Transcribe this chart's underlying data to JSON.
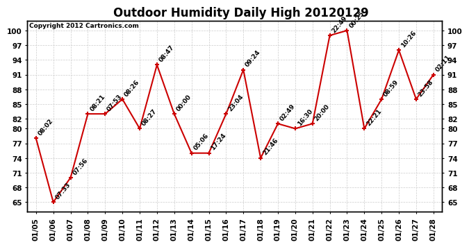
{
  "title": "Outdoor Humidity Daily High 20120129",
  "copyright": "Copyright 2012 Cartronics.com",
  "x_labels": [
    "01/05",
    "01/06",
    "01/07",
    "01/08",
    "01/09",
    "01/10",
    "01/11",
    "01/12",
    "01/13",
    "01/14",
    "01/15",
    "01/16",
    "01/17",
    "01/18",
    "01/19",
    "01/20",
    "01/21",
    "01/22",
    "01/23",
    "01/24",
    "01/25",
    "01/26",
    "01/27",
    "01/28"
  ],
  "y_values": [
    78,
    65,
    70,
    83,
    83,
    86,
    80,
    93,
    83,
    75,
    75,
    83,
    92,
    74,
    81,
    80,
    81,
    99,
    100,
    80,
    86,
    96,
    86,
    91
  ],
  "time_labels": [
    "08:02",
    "07:33",
    "07:56",
    "08:21",
    "07:53",
    "08:26",
    "08:27",
    "08:47",
    "00:00",
    "05:06",
    "17:24",
    "23:04",
    "09:24",
    "21:46",
    "02:49",
    "16:30",
    "20:00",
    "22:49",
    "00:25",
    "22:21",
    "08:59",
    "10:26",
    "23:58",
    "02:11"
  ],
  "ylim": [
    63,
    102
  ],
  "yticks": [
    65,
    68,
    71,
    74,
    77,
    80,
    82,
    85,
    88,
    91,
    94,
    97,
    100
  ],
  "line_color": "#cc0000",
  "marker_color": "#cc0000",
  "bg_color": "#ffffff",
  "grid_color": "#cccccc",
  "title_fontsize": 12,
  "label_fontsize": 6.5,
  "tick_fontsize": 7.5,
  "copyright_fontsize": 6.5
}
